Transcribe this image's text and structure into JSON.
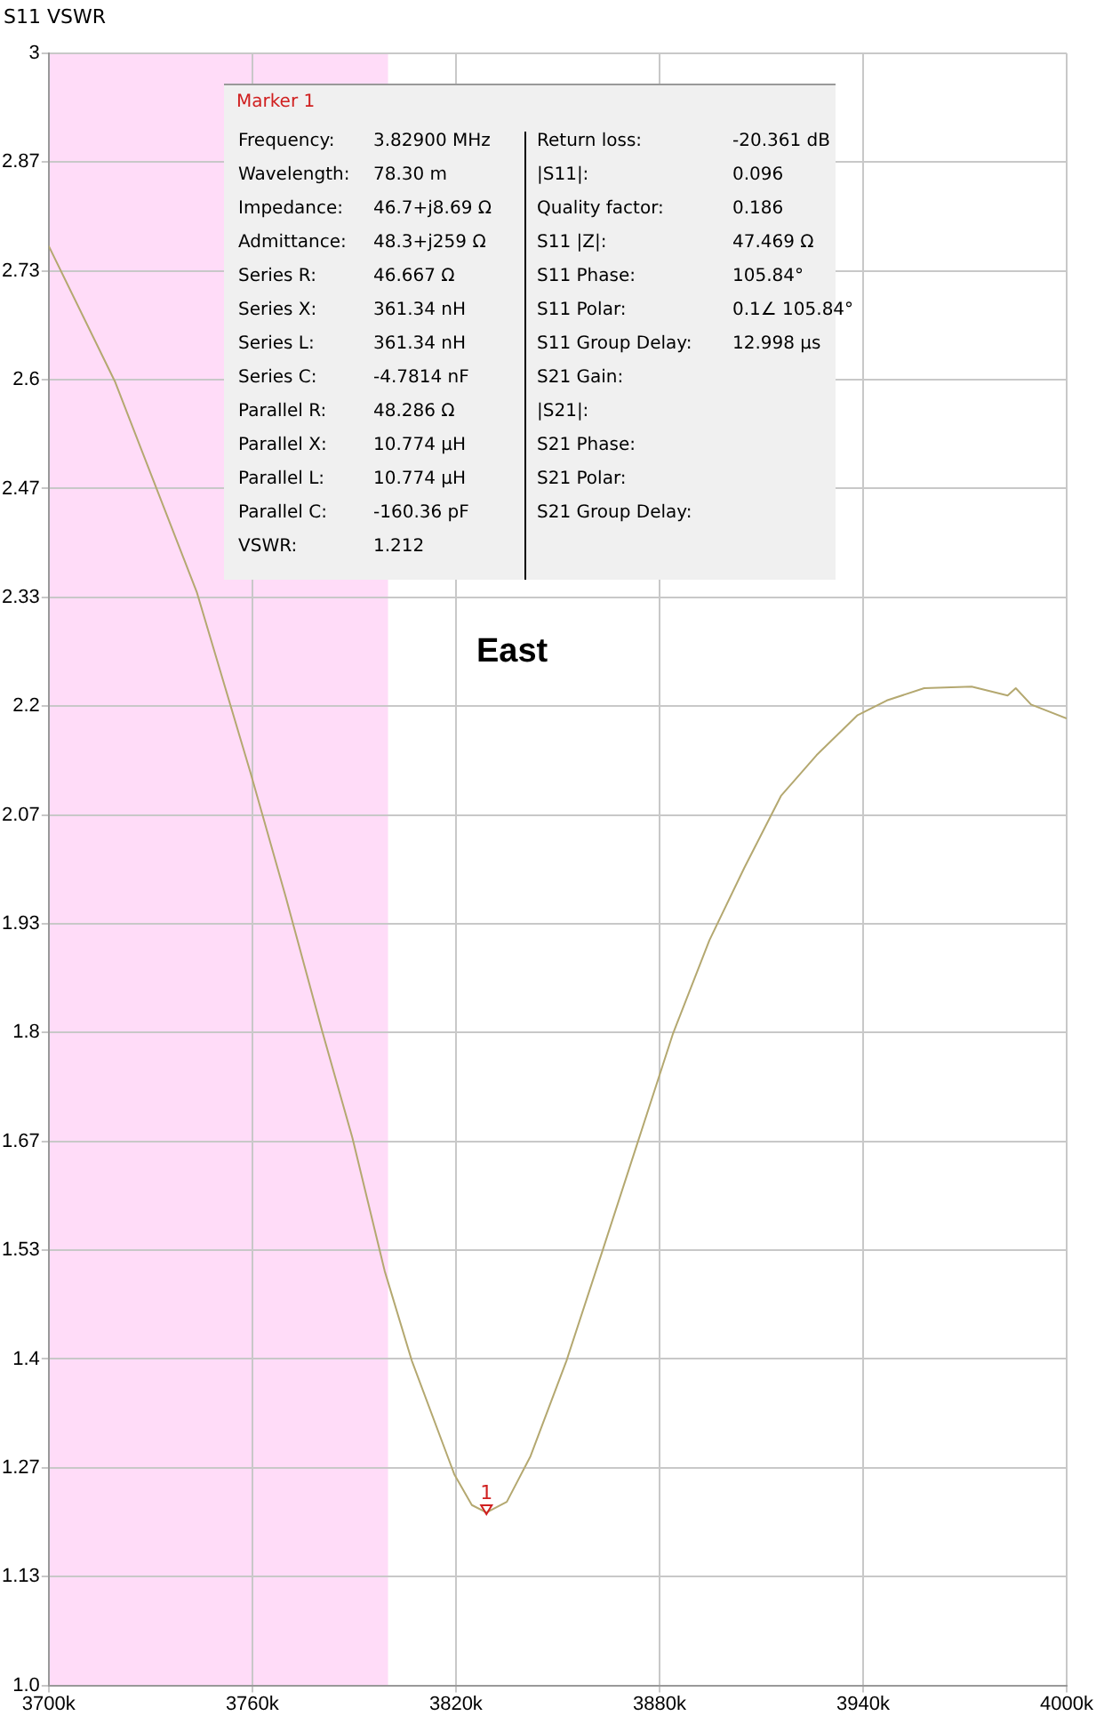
{
  "chart_data": {
    "type": "line",
    "title": "S11 VSWR",
    "x": [
      3700,
      3719.5,
      3743.7,
      3759.5,
      3770,
      3780.5,
      3789.5,
      3799,
      3807,
      3819.5,
      3824.7,
      3829,
      3835,
      3842,
      3852.6,
      3863,
      3873.7,
      3884,
      3894.7,
      3905,
      3915.8,
      3926.3,
      3938.4,
      3947,
      3958,
      3972,
      3982.6,
      3985,
      3989.5,
      4000
    ],
    "series": [
      {
        "color": "#b4a870",
        "values": [
          2.764,
          2.598,
          2.339,
          2.118,
          1.964,
          1.803,
          1.671,
          1.508,
          1.398,
          1.259,
          1.221,
          1.212,
          1.225,
          1.281,
          1.398,
          1.53,
          1.667,
          1.799,
          1.913,
          2.002,
          2.09,
          2.14,
          2.189,
          2.207,
          2.222,
          2.224,
          2.213,
          2.222,
          2.202,
          2.185
        ]
      }
    ],
    "xlim": [
      3700,
      4000
    ],
    "xticks": [
      {
        "value": 3700,
        "label": "3700k"
      },
      {
        "value": 3760,
        "label": "3760k"
      },
      {
        "value": 3820,
        "label": "3820k"
      },
      {
        "value": 3880,
        "label": "3880k"
      },
      {
        "value": 3940,
        "label": "3940k"
      },
      {
        "value": 4000,
        "label": "4000k"
      }
    ],
    "ylim": [
      1,
      3
    ],
    "yticks": [
      {
        "value": 1,
        "label": "1.0"
      },
      {
        "value": 1.1333,
        "label": "1.13"
      },
      {
        "value": 1.2667,
        "label": "1.27"
      },
      {
        "value": 1.4,
        "label": "1.4"
      },
      {
        "value": 1.5333,
        "label": "1.53"
      },
      {
        "value": 1.6667,
        "label": "1.67"
      },
      {
        "value": 1.8,
        "label": "1.8"
      },
      {
        "value": 1.9333,
        "label": "1.93"
      },
      {
        "value": 2.0667,
        "label": "2.07"
      },
      {
        "value": 2.2,
        "label": "2.2"
      },
      {
        "value": 2.3333,
        "label": "2.33"
      },
      {
        "value": 2.4667,
        "label": "2.47"
      },
      {
        "value": 2.6,
        "label": "2.6"
      },
      {
        "value": 2.7333,
        "label": "2.73"
      },
      {
        "value": 2.8667,
        "label": "2.87"
      },
      {
        "value": 3,
        "label": "3"
      }
    ],
    "bands": [
      {
        "axis": "x",
        "from": 3700,
        "to": 3800,
        "color": "#ffdcf8"
      }
    ],
    "grid": true,
    "marker": "none",
    "line_style": "solid",
    "annotations": [
      "Marker 1",
      "East",
      {
        "text": "1",
        "x": 3829,
        "y": 1.212
      },
      "Frequency: 3.82900 MHz",
      "Wavelength: 78.30 m",
      "Impedance: 46.7+j8.69 Ω",
      "Admittance: 48.3+j259 Ω",
      "Series R: 46.667 Ω",
      "Series X: 361.34 nH",
      "Series L: 361.34 nH",
      "Series C: -4.7814 nF",
      "Parallel R: 48.286 Ω",
      "Parallel X: 10.774 µH",
      "Parallel L: 10.774 µH",
      "Parallel C: -160.36 pF",
      "VSWR: 1.212",
      "Return loss: -20.361 dB",
      "|S11|: 0.096",
      "Quality factor: 0.186",
      "S11 |Z|: 47.469 Ω",
      "S11 Phase: 105.84°",
      "S11 Polar: 0.1∠ 105.84°",
      "S11 Group Delay: 12.998 µs",
      "S21 Gain:",
      "|S21|:",
      "S21 Phase:",
      "S21 Polar:",
      "S21 Group Delay:"
    ]
  }
}
